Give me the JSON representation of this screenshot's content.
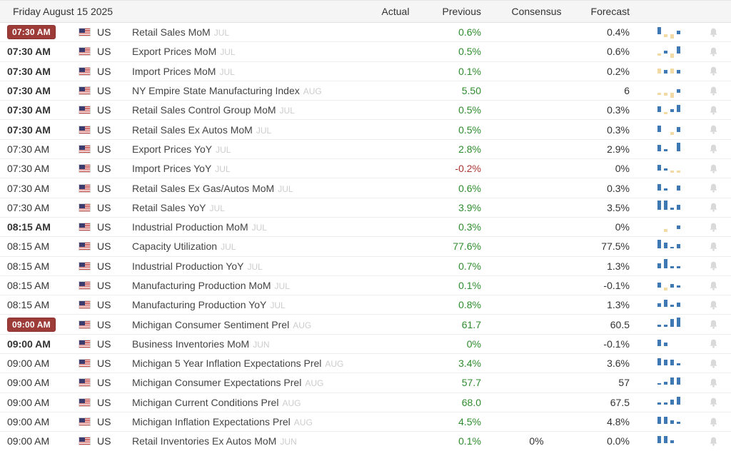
{
  "header": {
    "date": "Friday August 15 2025",
    "columns": [
      "Actual",
      "Previous",
      "Consensus",
      "Forecast"
    ]
  },
  "colors": {
    "badge_bg": "#9d3b38",
    "previous_positive": "#2e8b2e",
    "previous_negative": "#aa3433",
    "spark_blue": "#3e79b4",
    "spark_tan": "#f3d9a4",
    "bell_gray": "#d9d9d9"
  },
  "rows": [
    {
      "time": "07:30 AM",
      "emphasis": "badge",
      "country": "US",
      "event": "Retail Sales MoM",
      "period": "JUL",
      "actual": "",
      "previous": "0.6%",
      "previous_negative": false,
      "consensus": "",
      "forecast": "0.4%",
      "spark": [
        [
          "b",
          5
        ],
        [
          "t",
          -2
        ],
        [
          "t",
          -3
        ],
        [
          "b",
          2
        ]
      ]
    },
    {
      "time": "07:30 AM",
      "emphasis": "bold",
      "country": "US",
      "event": "Export Prices MoM",
      "period": "JUL",
      "actual": "",
      "previous": "0.5%",
      "previous_negative": false,
      "consensus": "",
      "forecast": "0.6%",
      "spark": [
        [
          "t",
          -1
        ],
        [
          "b",
          2
        ],
        [
          "t",
          -3
        ],
        [
          "b",
          5
        ]
      ]
    },
    {
      "time": "07:30 AM",
      "emphasis": "bold",
      "country": "US",
      "event": "Import Prices MoM",
      "period": "JUL",
      "actual": "",
      "previous": "0.1%",
      "previous_negative": false,
      "consensus": "",
      "forecast": "0.2%",
      "spark": [
        [
          "t",
          3
        ],
        [
          "b",
          2
        ],
        [
          "t",
          3
        ],
        [
          "b",
          2
        ]
      ]
    },
    {
      "time": "07:30 AM",
      "emphasis": "bold",
      "country": "US",
      "event": "NY Empire State Manufacturing Index",
      "period": "AUG",
      "actual": "",
      "previous": "5.50",
      "previous_negative": false,
      "consensus": "",
      "forecast": "6",
      "spark": [
        [
          "t",
          -1
        ],
        [
          "t",
          -2
        ],
        [
          "t",
          -4
        ],
        [
          "b",
          2
        ]
      ]
    },
    {
      "time": "07:30 AM",
      "emphasis": "bold",
      "country": "US",
      "event": "Retail Sales Control Group MoM",
      "period": "JUL",
      "actual": "",
      "previous": "0.5%",
      "previous_negative": false,
      "consensus": "",
      "forecast": "0.3%",
      "spark": [
        [
          "b",
          4
        ],
        [
          "t",
          -1
        ],
        [
          "b",
          2
        ],
        [
          "b",
          5
        ]
      ]
    },
    {
      "time": "07:30 AM",
      "emphasis": "bold",
      "country": "US",
      "event": "Retail Sales Ex Autos MoM",
      "period": "JUL",
      "actual": "",
      "previous": "0.5%",
      "previous_negative": false,
      "consensus": "",
      "forecast": "0.3%",
      "spark": [
        [
          "b",
          4
        ],
        [
          "g",
          0
        ],
        [
          "t",
          -2
        ],
        [
          "b",
          3
        ]
      ]
    },
    {
      "time": "07:30 AM",
      "emphasis": "normal",
      "country": "US",
      "event": "Export Prices YoY",
      "period": "JUL",
      "actual": "",
      "previous": "2.8%",
      "previous_negative": false,
      "consensus": "",
      "forecast": "2.9%",
      "spark": [
        [
          "b",
          4
        ],
        [
          "b",
          1
        ],
        [
          "g",
          0
        ],
        [
          "b",
          6
        ]
      ]
    },
    {
      "time": "07:30 AM",
      "emphasis": "normal",
      "country": "US",
      "event": "Import Prices YoY",
      "period": "JUL",
      "actual": "",
      "previous": "-0.2%",
      "previous_negative": true,
      "consensus": "",
      "forecast": "0%",
      "spark": [
        [
          "b",
          4
        ],
        [
          "b",
          1
        ],
        [
          "t",
          -1
        ],
        [
          "t",
          -1
        ]
      ]
    },
    {
      "time": "07:30 AM",
      "emphasis": "normal",
      "country": "US",
      "event": "Retail Sales Ex Gas/Autos MoM",
      "period": "JUL",
      "actual": "",
      "previous": "0.6%",
      "previous_negative": false,
      "consensus": "",
      "forecast": "0.3%",
      "spark": [
        [
          "b",
          4
        ],
        [
          "b",
          1
        ],
        [
          "g",
          0
        ],
        [
          "b",
          3
        ]
      ]
    },
    {
      "time": "07:30 AM",
      "emphasis": "normal",
      "country": "US",
      "event": "Retail Sales YoY",
      "period": "JUL",
      "actual": "",
      "previous": "3.9%",
      "previous_negative": false,
      "consensus": "",
      "forecast": "3.5%",
      "spark": [
        [
          "b",
          6
        ],
        [
          "b",
          6
        ],
        [
          "b",
          1
        ],
        [
          "b",
          3
        ]
      ]
    },
    {
      "time": "08:15 AM",
      "emphasis": "bold",
      "country": "US",
      "event": "Industrial Production MoM",
      "period": "JUL",
      "actual": "",
      "previous": "0.3%",
      "previous_negative": false,
      "consensus": "",
      "forecast": "0%",
      "spark": [
        [
          "g",
          0
        ],
        [
          "t",
          -2
        ],
        [
          "g",
          0
        ],
        [
          "b",
          2
        ]
      ]
    },
    {
      "time": "08:15 AM",
      "emphasis": "normal",
      "country": "US",
      "event": "Capacity Utilization",
      "period": "JUL",
      "actual": "",
      "previous": "77.6%",
      "previous_negative": false,
      "consensus": "",
      "forecast": "77.5%",
      "spark": [
        [
          "b",
          6
        ],
        [
          "b",
          4
        ],
        [
          "b",
          1
        ],
        [
          "b",
          3
        ]
      ]
    },
    {
      "time": "08:15 AM",
      "emphasis": "normal",
      "country": "US",
      "event": "Industrial Production YoY",
      "period": "JUL",
      "actual": "",
      "previous": "0.7%",
      "previous_negative": false,
      "consensus": "",
      "forecast": "1.3%",
      "spark": [
        [
          "b",
          3
        ],
        [
          "b",
          6
        ],
        [
          "b",
          1
        ],
        [
          "b",
          1
        ]
      ]
    },
    {
      "time": "08:15 AM",
      "emphasis": "normal",
      "country": "US",
      "event": "Manufacturing Production MoM",
      "period": "JUL",
      "actual": "",
      "previous": "0.1%",
      "previous_negative": false,
      "consensus": "",
      "forecast": "-0.1%",
      "spark": [
        [
          "b",
          3
        ],
        [
          "t",
          -2
        ],
        [
          "b",
          2
        ],
        [
          "b",
          1
        ]
      ]
    },
    {
      "time": "08:15 AM",
      "emphasis": "normal",
      "country": "US",
      "event": "Manufacturing Production YoY",
      "period": "JUL",
      "actual": "",
      "previous": "0.8%",
      "previous_negative": false,
      "consensus": "",
      "forecast": "1.3%",
      "spark": [
        [
          "b",
          2
        ],
        [
          "b",
          5
        ],
        [
          "b",
          1
        ],
        [
          "b",
          3
        ]
      ]
    },
    {
      "time": "09:00 AM",
      "emphasis": "badge",
      "country": "US",
      "event": "Michigan Consumer Sentiment Prel",
      "period": "AUG",
      "actual": "",
      "previous": "61.7",
      "previous_negative": false,
      "consensus": "",
      "forecast": "60.5",
      "spark": [
        [
          "b",
          1
        ],
        [
          "b",
          1
        ],
        [
          "b",
          5
        ],
        [
          "b",
          6
        ]
      ]
    },
    {
      "time": "09:00 AM",
      "emphasis": "bold",
      "country": "US",
      "event": "Business Inventories MoM",
      "period": "JUN",
      "actual": "",
      "previous": "0%",
      "previous_negative": false,
      "consensus": "",
      "forecast": "-0.1%",
      "spark": [
        [
          "b",
          4
        ],
        [
          "b",
          2
        ],
        [
          "g",
          0
        ],
        [
          "g",
          0
        ]
      ]
    },
    {
      "time": "09:00 AM",
      "emphasis": "normal",
      "country": "US",
      "event": "Michigan 5 Year Inflation Expectations Prel",
      "period": "AUG",
      "actual": "",
      "previous": "3.4%",
      "previous_negative": false,
      "consensus": "",
      "forecast": "3.6%",
      "spark": [
        [
          "b",
          5
        ],
        [
          "b",
          4
        ],
        [
          "b",
          4
        ],
        [
          "b",
          1
        ]
      ]
    },
    {
      "time": "09:00 AM",
      "emphasis": "normal",
      "country": "US",
      "event": "Michigan Consumer Expectations Prel",
      "period": "AUG",
      "actual": "",
      "previous": "57.7",
      "previous_negative": false,
      "consensus": "",
      "forecast": "57",
      "spark": [
        [
          "b",
          1
        ],
        [
          "b",
          2
        ],
        [
          "b",
          5
        ],
        [
          "b",
          5
        ]
      ]
    },
    {
      "time": "09:00 AM",
      "emphasis": "normal",
      "country": "US",
      "event": "Michigan Current Conditions Prel",
      "period": "AUG",
      "actual": "",
      "previous": "68.0",
      "previous_negative": false,
      "consensus": "",
      "forecast": "67.5",
      "spark": [
        [
          "b",
          1
        ],
        [
          "b",
          1
        ],
        [
          "b",
          3
        ],
        [
          "b",
          5
        ]
      ]
    },
    {
      "time": "09:00 AM",
      "emphasis": "normal",
      "country": "US",
      "event": "Michigan Inflation Expectations Prel",
      "period": "AUG",
      "actual": "",
      "previous": "4.5%",
      "previous_negative": false,
      "consensus": "",
      "forecast": "4.8%",
      "spark": [
        [
          "b",
          5
        ],
        [
          "b",
          5
        ],
        [
          "b",
          2
        ],
        [
          "b",
          1
        ]
      ]
    },
    {
      "time": "09:00 AM",
      "emphasis": "normal",
      "country": "US",
      "event": "Retail Inventories Ex Autos MoM",
      "period": "JUN",
      "actual": "",
      "previous": "0.1%",
      "previous_negative": false,
      "consensus": "0%",
      "forecast": "0.0%",
      "spark": [
        [
          "b",
          5
        ],
        [
          "b",
          5
        ],
        [
          "b",
          2
        ],
        [
          "g",
          0
        ]
      ]
    }
  ]
}
